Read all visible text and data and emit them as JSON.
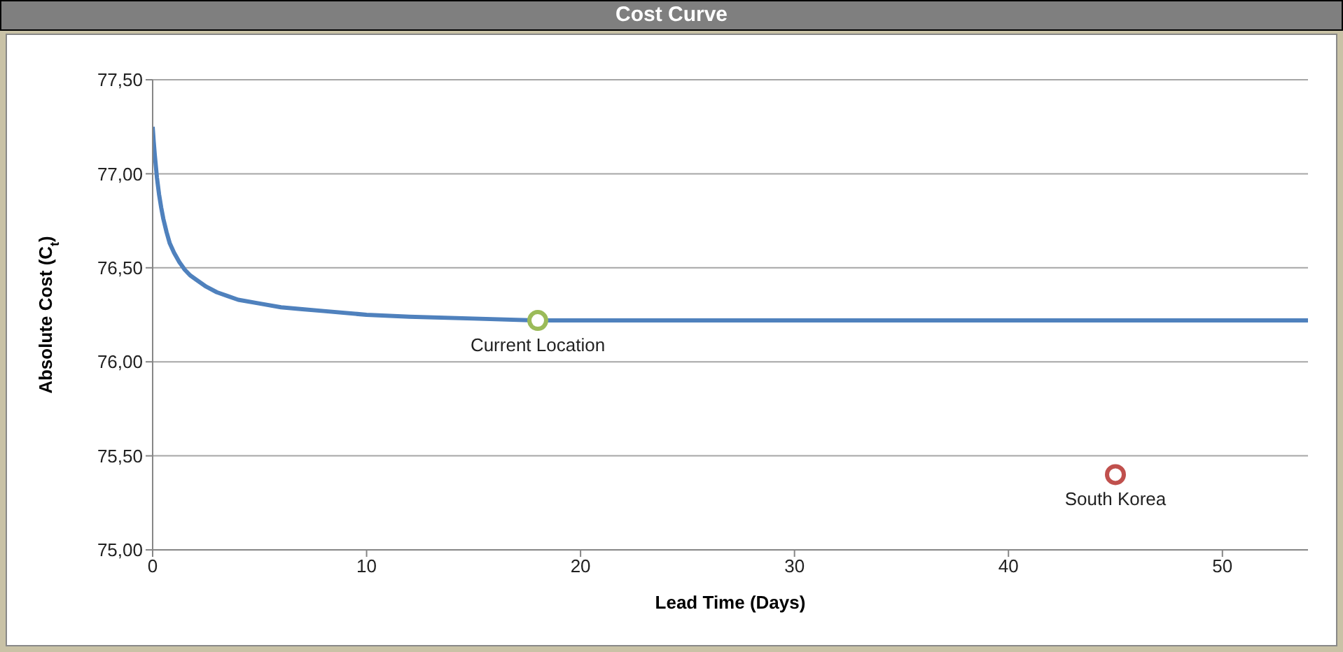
{
  "chart_data": {
    "type": "line",
    "title": "Cost Curve",
    "xlabel": "Lead Time (Days)",
    "ylabel": "Absolute Cost (C$_{t}$)",
    "xlim": [
      0,
      54
    ],
    "xticks": [
      0,
      10,
      20,
      30,
      40,
      50
    ],
    "ylim": [
      75,
      77.5
    ],
    "yticks": [
      {
        "value": 75,
        "label": "75,00"
      },
      {
        "value": 75.5,
        "label": "75,50"
      },
      {
        "value": 76,
        "label": "76,00"
      },
      {
        "value": 76.5,
        "label": "76,50"
      },
      {
        "value": 77,
        "label": "77,00"
      },
      {
        "value": 77.5,
        "label": "77,50"
      }
    ],
    "grid": "y",
    "legend": false,
    "series": [
      {
        "color": "#4f81bd",
        "marker": "none",
        "x": [
          0,
          0.05,
          0.1,
          0.2,
          0.3,
          0.4,
          0.5,
          0.65,
          0.8,
          1,
          1.25,
          1.5,
          1.75,
          2,
          2.5,
          3,
          3.5,
          4,
          5,
          6,
          7,
          8,
          10,
          12,
          15,
          18,
          25,
          35,
          45,
          54
        ],
        "values": [
          77.25,
          77.17,
          77.1,
          76.98,
          76.89,
          76.82,
          76.76,
          76.69,
          76.63,
          76.58,
          76.53,
          76.49,
          76.46,
          76.44,
          76.4,
          76.37,
          76.35,
          76.33,
          76.31,
          76.29,
          76.28,
          76.27,
          76.25,
          76.24,
          76.23,
          76.22,
          76.22,
          76.22,
          76.22,
          76.22
        ]
      },
      {
        "type": "scatter",
        "name": "Current Location",
        "color": "#9bbb59",
        "marker": "circle",
        "x": [
          18
        ],
        "values": [
          76.22
        ]
      },
      {
        "type": "scatter",
        "name": "South Korea",
        "color": "#c0504d",
        "marker": "circle",
        "x": [
          45
        ],
        "values": [
          75.4
        ]
      }
    ]
  }
}
